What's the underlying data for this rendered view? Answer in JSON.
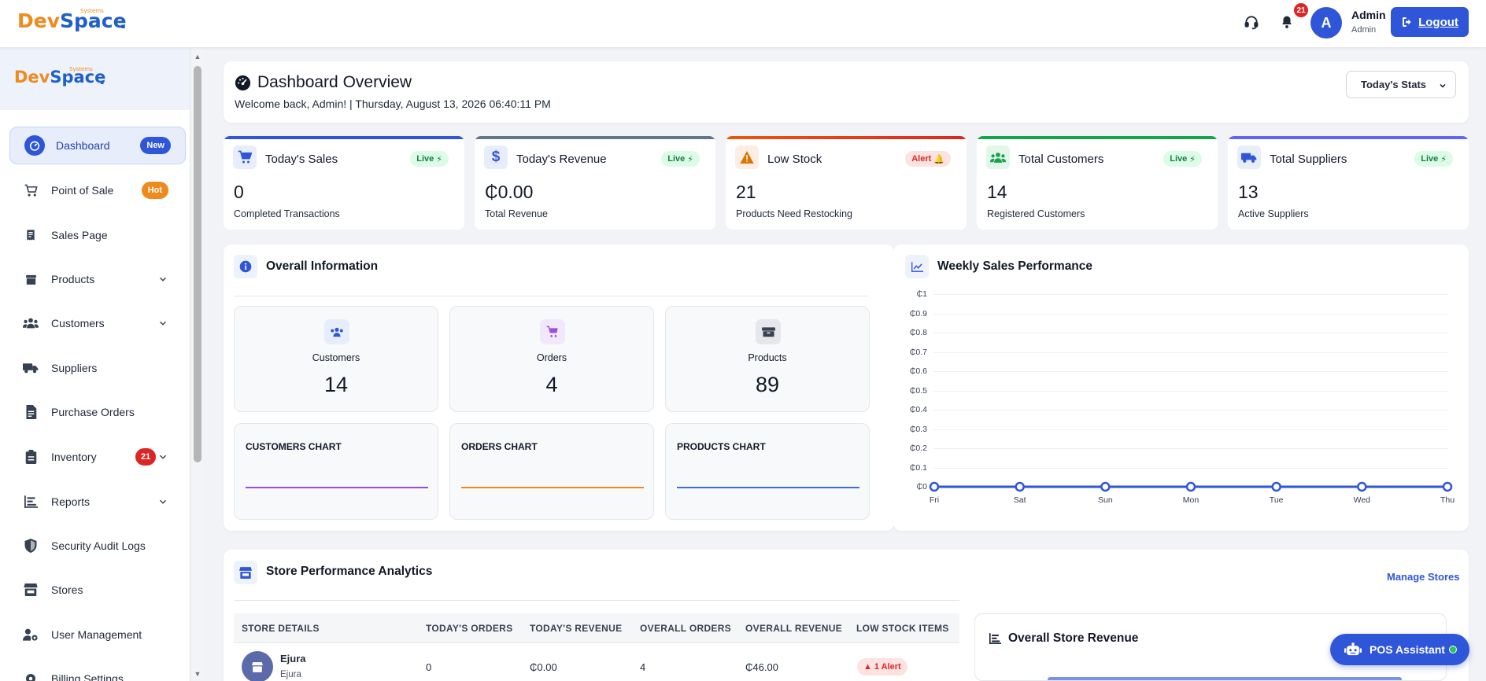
{
  "brand": {
    "dev": "Dev",
    "space": "Space",
    "systems": "Systems",
    "dot": "."
  },
  "topbar": {
    "notification_count": "21",
    "avatar_initial": "A",
    "user_name": "Admin",
    "user_role": "Admin",
    "logout_label": "Logout"
  },
  "sidebar": {
    "items": [
      {
        "label": "Dashboard",
        "badge": "New",
        "badge_color": "#2f56d8"
      },
      {
        "label": "Point of Sale",
        "badge": "Hot",
        "badge_color": "#f08a1c"
      },
      {
        "label": "Sales Page"
      },
      {
        "label": "Products"
      },
      {
        "label": "Customers"
      },
      {
        "label": "Suppliers"
      },
      {
        "label": "Purchase Orders"
      },
      {
        "label": "Inventory",
        "badge": "21",
        "badge_color": "#dc2626"
      },
      {
        "label": "Reports"
      },
      {
        "label": "Security Audit Logs"
      },
      {
        "label": "Stores"
      },
      {
        "label": "User Management"
      },
      {
        "label": "Billing Settings"
      }
    ]
  },
  "overview": {
    "title": "Dashboard Overview",
    "welcome": "Welcome back, Admin! | Thursday, August 13, 2026 06:40:11 PM",
    "stats_select": "Today's Stats"
  },
  "stats": [
    {
      "title": "Today's Sales",
      "badge": "Live",
      "value": "0",
      "desc": "Completed Transactions",
      "color": "#2f56d8"
    },
    {
      "title": "Today's Revenue",
      "badge": "Live",
      "value": "₵0.00",
      "desc": "Total Revenue",
      "color": "#64748b"
    },
    {
      "title": "Low Stock",
      "badge": "Alert",
      "value": "21",
      "desc": "Products Need Restocking",
      "color": "#ea580c"
    },
    {
      "title": "Total Customers",
      "badge": "Live",
      "value": "14",
      "desc": "Registered Customers",
      "color": "#16a34a"
    },
    {
      "title": "Total Suppliers",
      "badge": "Live",
      "value": "13",
      "desc": "Active Suppliers",
      "color": "#6366f1"
    }
  ],
  "overall_info": {
    "title": "Overall Information",
    "tiles": [
      {
        "label": "Customers",
        "value": "14"
      },
      {
        "label": "Orders",
        "value": "4"
      },
      {
        "label": "Products",
        "value": "89"
      }
    ],
    "charts": [
      {
        "label": "CUSTOMERS CHART",
        "color": "#9b4ddb"
      },
      {
        "label": "ORDERS CHART",
        "color": "#f08a1c"
      },
      {
        "label": "PRODUCTS CHART",
        "color": "#3b6fe0"
      }
    ]
  },
  "weekly": {
    "title": "Weekly Sales Performance"
  },
  "chart_data": {
    "type": "line",
    "categories": [
      "Fri",
      "Sat",
      "Sun",
      "Mon",
      "Tue",
      "Wed",
      "Thu"
    ],
    "values": [
      0,
      0,
      0,
      0,
      0,
      0,
      0
    ],
    "y_ticks": [
      "₵0",
      "₵0.1",
      "₵0.2",
      "₵0.3",
      "₵0.4",
      "₵0.5",
      "₵0.6",
      "₵0.7",
      "₵0.8",
      "₵0.9",
      "₵1"
    ],
    "ylim": [
      0,
      1
    ],
    "grid": true,
    "color": "#2f56d8"
  },
  "store_analytics": {
    "title": "Store Performance Analytics",
    "manage_link": "Manage Stores",
    "columns": [
      "STORE DETAILS",
      "TODAY'S ORDERS",
      "TODAY'S REVENUE",
      "OVERALL ORDERS",
      "OVERALL REVENUE",
      "LOW STOCK ITEMS"
    ],
    "rows": [
      {
        "name": "Ejura",
        "location": "Ejura",
        "today_orders": "0",
        "today_revenue": "₵0.00",
        "overall_orders": "4",
        "overall_revenue": "₵46.00",
        "low_stock": "1 Alert"
      }
    ],
    "revenue_card_title": "Overall Store Revenue"
  },
  "assistant": {
    "label": "POS Assistant"
  }
}
